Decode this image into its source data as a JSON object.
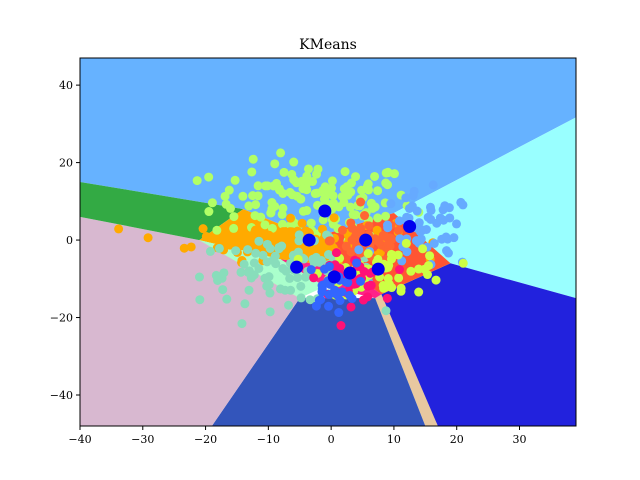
{
  "chart_data": {
    "type": "scatter",
    "title": "KMeans",
    "xlabel": "",
    "ylabel": "",
    "xlim": [
      -40,
      39
    ],
    "ylim": [
      -48,
      47
    ],
    "xticks": [
      -40,
      -30,
      -20,
      -10,
      0,
      10,
      20,
      30
    ],
    "yticks": [
      -40,
      -20,
      0,
      20,
      40
    ],
    "grid": false,
    "regions": [
      {
        "color": "#66b2ff",
        "polygon": [
          [
            -40,
            47
          ],
          [
            -40,
            15
          ],
          [
            -14,
            8
          ],
          [
            -5,
            2
          ],
          [
            0,
            2
          ],
          [
            10,
            7
          ],
          [
            57,
            47
          ]
        ]
      },
      {
        "color": "#99ffff",
        "polygon": [
          [
            57,
            47
          ],
          [
            10,
            7
          ],
          [
            19,
            -6
          ],
          [
            39,
            -15
          ],
          [
            39,
            47
          ]
        ]
      },
      {
        "color": "#2222dd",
        "polygon": [
          [
            39,
            -15
          ],
          [
            19,
            -6
          ],
          [
            8,
            -14
          ],
          [
            7,
            -15
          ],
          [
            17,
            -48
          ],
          [
            39,
            -48
          ]
        ]
      },
      {
        "color": "#e8c8a0",
        "polygon": [
          [
            7,
            -15
          ],
          [
            8,
            -14
          ],
          [
            17,
            -48
          ],
          [
            15,
            -48
          ]
        ]
      },
      {
        "color": "#3355bb",
        "polygon": [
          [
            7,
            -15
          ],
          [
            15,
            -48
          ],
          [
            -19,
            -48
          ],
          [
            -5,
            -15
          ]
        ]
      },
      {
        "color": "#d8b8d0",
        "polygon": [
          [
            -40,
            6
          ],
          [
            -21,
            0
          ],
          [
            -5,
            -15
          ],
          [
            -19,
            -48
          ],
          [
            -40,
            -48
          ]
        ]
      },
      {
        "color": "#33aa44",
        "polygon": [
          [
            -40,
            15
          ],
          [
            -14,
            8
          ],
          [
            -21,
            0
          ],
          [
            -40,
            6
          ]
        ]
      },
      {
        "color": "#ffaa00",
        "polygon": [
          [
            -14,
            8
          ],
          [
            -5,
            2
          ],
          [
            0,
            2
          ],
          [
            2,
            -7
          ],
          [
            -8,
            -5
          ],
          [
            -21,
            0
          ]
        ]
      },
      {
        "color": "#aaff66",
        "polygon": [
          [
            -21,
            0
          ],
          [
            -8,
            -5
          ],
          [
            2,
            -7
          ],
          [
            8,
            -14
          ],
          [
            19,
            -6
          ],
          [
            10,
            7
          ],
          [
            6,
            3
          ],
          [
            -5,
            -15
          ]
        ]
      },
      {
        "color": "#aaffcc",
        "polygon": [
          [
            -21,
            0
          ],
          [
            -8,
            -5
          ],
          [
            -1,
            -12
          ],
          [
            -5,
            -15
          ]
        ]
      },
      {
        "color": "#ff5533",
        "polygon": [
          [
            0,
            2
          ],
          [
            10,
            7
          ],
          [
            19,
            -6
          ],
          [
            8,
            -14
          ],
          [
            2,
            -7
          ]
        ]
      },
      {
        "color": "#ff2288",
        "polygon": [
          [
            2,
            -7
          ],
          [
            8,
            -14
          ],
          [
            7,
            -15
          ],
          [
            -1,
            -12
          ],
          [
            -8,
            -5
          ]
        ]
      }
    ],
    "series": [
      {
        "color": "#b2ff66",
        "cx": -3,
        "cy": 10,
        "sx": 8,
        "sy": 5,
        "n": 140
      },
      {
        "color": "#ffaa00",
        "cx": -6,
        "cy": 0,
        "sx": 8,
        "sy": 2.5,
        "n": 110
      },
      {
        "color": "#88ddbb",
        "cx": -7,
        "cy": -8,
        "sx": 7,
        "sy": 4,
        "n": 90
      },
      {
        "color": "#ff6633",
        "cx": 6,
        "cy": 0,
        "sx": 3,
        "sy": 3,
        "n": 55
      },
      {
        "color": "#66aaff",
        "cx": 15,
        "cy": 2,
        "sx": 4,
        "sy": 5,
        "n": 55
      },
      {
        "color": "#ccff44",
        "cx": 9,
        "cy": -8,
        "sx": 5,
        "sy": 3,
        "n": 55
      },
      {
        "color": "#ff1177",
        "cx": 3,
        "cy": -10,
        "sx": 2.5,
        "sy": 3,
        "n": 40
      },
      {
        "color": "#3366ff",
        "cx": 0,
        "cy": -12,
        "sx": 2,
        "sy": 3,
        "n": 30
      }
    ],
    "centroids": {
      "color": "#0000ee",
      "x": [
        -1,
        -3.5,
        5.5,
        12.5,
        -5.5,
        0.5,
        3,
        7.5
      ],
      "y": [
        7.5,
        0,
        0,
        3.5,
        -7,
        -9.5,
        -8.5,
        -7.5
      ]
    }
  }
}
